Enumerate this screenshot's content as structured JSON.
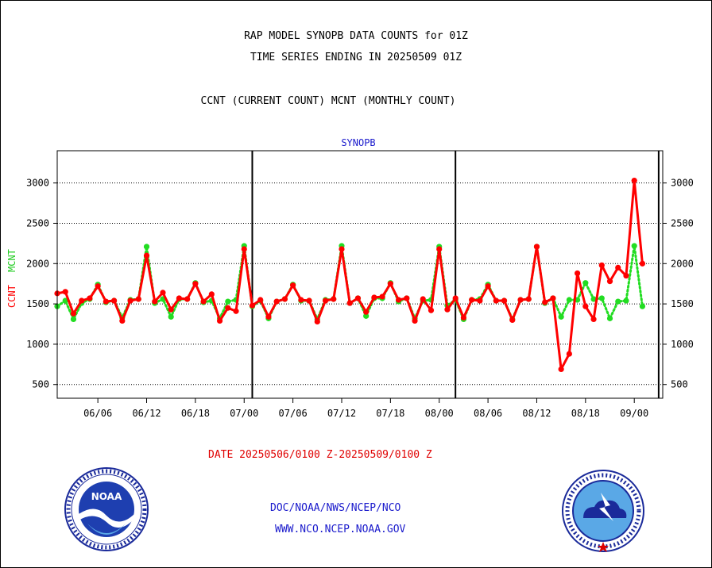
{
  "title_line1": "RAP MODEL SYNOPB DATA COUNTS for 01Z",
  "title_line2": "TIME SERIES ENDING IN 20250509 01Z",
  "title_line3": "CCNT (CURRENT COUNT) MCNT (MONTHLY COUNT)",
  "footer": {
    "date_range": "DATE 20250506/0100 Z-20250509/0100 Z",
    "org": "DOC/NOAA/NWS/NCEP/NCO",
    "url": "WWW.NCO.NCEP.NOAA.GOV"
  },
  "logos": {
    "left": "noaa-logo",
    "right": "national-weather-service-logo"
  },
  "chart_data": {
    "type": "line",
    "subtitle": "SYNOPB",
    "ylabel_left_red": "CCNT",
    "ylabel_left_green": "MCNT",
    "y_ticks": [
      500,
      1000,
      1500,
      2000,
      2500,
      3000
    ],
    "y_tick_labels": [
      "500",
      "1000",
      "1500",
      "2000",
      "2500",
      "3000"
    ],
    "ylim": [
      330,
      3400
    ],
    "x_range": [
      0,
      74.5
    ],
    "x_ticks": [
      5,
      11,
      17,
      23,
      29,
      35,
      41,
      47,
      53,
      59,
      65,
      71
    ],
    "x_tick_labels": [
      "06/06",
      "06/12",
      "06/18",
      "07/00",
      "07/06",
      "07/12",
      "07/18",
      "08/00",
      "08/06",
      "08/12",
      "08/18",
      "09/00"
    ],
    "vertical_lines": [
      24,
      49,
      74
    ],
    "grid": true,
    "colors": {
      "ccnt": "#ff0000",
      "mcnt": "#22dd22",
      "subtitle": "#1a1acc",
      "axis": "#000000"
    },
    "series": [
      {
        "name": "CCNT",
        "color": "#ff0000",
        "style": "solid",
        "values": [
          1630,
          1650,
          1380,
          1540,
          1570,
          1720,
          1530,
          1540,
          1290,
          1540,
          1560,
          2100,
          1530,
          1640,
          1430,
          1570,
          1560,
          1750,
          1530,
          1620,
          1290,
          1450,
          1410,
          2180,
          1480,
          1550,
          1340,
          1530,
          1560,
          1730,
          1550,
          1540,
          1280,
          1540,
          1560,
          2180,
          1510,
          1570,
          1400,
          1580,
          1590,
          1750,
          1550,
          1570,
          1290,
          1560,
          1420,
          2180,
          1430,
          1570,
          1330,
          1550,
          1540,
          1720,
          1540,
          1540,
          1300,
          1550,
          1560,
          2210,
          1520,
          1570,
          690,
          880,
          1880,
          1470,
          1310,
          1980,
          1780,
          1950,
          1850,
          3030,
          2000
        ]
      },
      {
        "name": "MCNT",
        "color": "#22dd22",
        "style": "dotted",
        "values": [
          1470,
          1540,
          1310,
          1510,
          1560,
          1740,
          1520,
          1540,
          1330,
          1550,
          1560,
          2210,
          1510,
          1560,
          1340,
          1560,
          1560,
          1760,
          1520,
          1540,
          1320,
          1530,
          1550,
          2220,
          1470,
          1540,
          1320,
          1530,
          1560,
          1740,
          1540,
          1540,
          1310,
          1550,
          1560,
          2220,
          1510,
          1570,
          1350,
          1570,
          1570,
          1760,
          1530,
          1570,
          1320,
          1540,
          1550,
          2210,
          1480,
          1550,
          1310,
          1550,
          1560,
          1740,
          1540,
          1540,
          1310,
          1550,
          1560,
          2210,
          1510,
          1570,
          1340,
          1550,
          1550,
          1760,
          1560,
          1570,
          1320,
          1530,
          1540,
          2220,
          1470
        ]
      }
    ]
  }
}
